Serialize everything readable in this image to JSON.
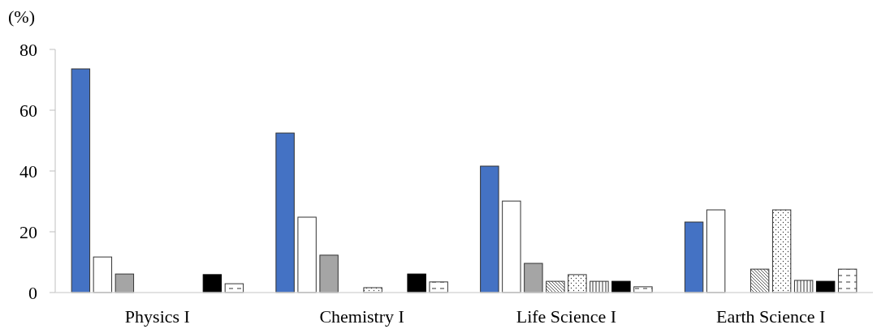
{
  "chart_data": {
    "type": "bar",
    "ylabel": "(%)",
    "categories": [
      "Physics I",
      "Chemistry I",
      "Life Science I",
      "Earth Science I"
    ],
    "ylim": [
      0,
      80
    ],
    "yticks": [
      0,
      20,
      40,
      60,
      80
    ],
    "grid": false,
    "series": [
      {
        "color": "#4472c4",
        "values": [
          73.6,
          52.5,
          41.6,
          23.2
        ]
      },
      {
        "color": "#ffffff",
        "values": [
          11.7,
          24.8,
          30.1,
          27.2
        ]
      },
      {
        "color": "#a5a5a5",
        "values": [
          6.1,
          12.3,
          9.6,
          0
        ]
      },
      {
        "color": "#ffffff",
        "values": [
          0,
          0,
          3.7,
          7.7
        ]
      },
      {
        "color": "#ffffff",
        "values": [
          0,
          1.6,
          5.9,
          27.2
        ]
      },
      {
        "color": "#ffffff",
        "values": [
          0,
          0,
          3.7,
          4.0
        ]
      },
      {
        "color": "#000000",
        "values": [
          5.9,
          6.1,
          3.7,
          3.7
        ]
      },
      {
        "color": "#ffffff",
        "values": [
          2.9,
          3.5,
          1.9,
          7.7
        ]
      }
    ]
  }
}
